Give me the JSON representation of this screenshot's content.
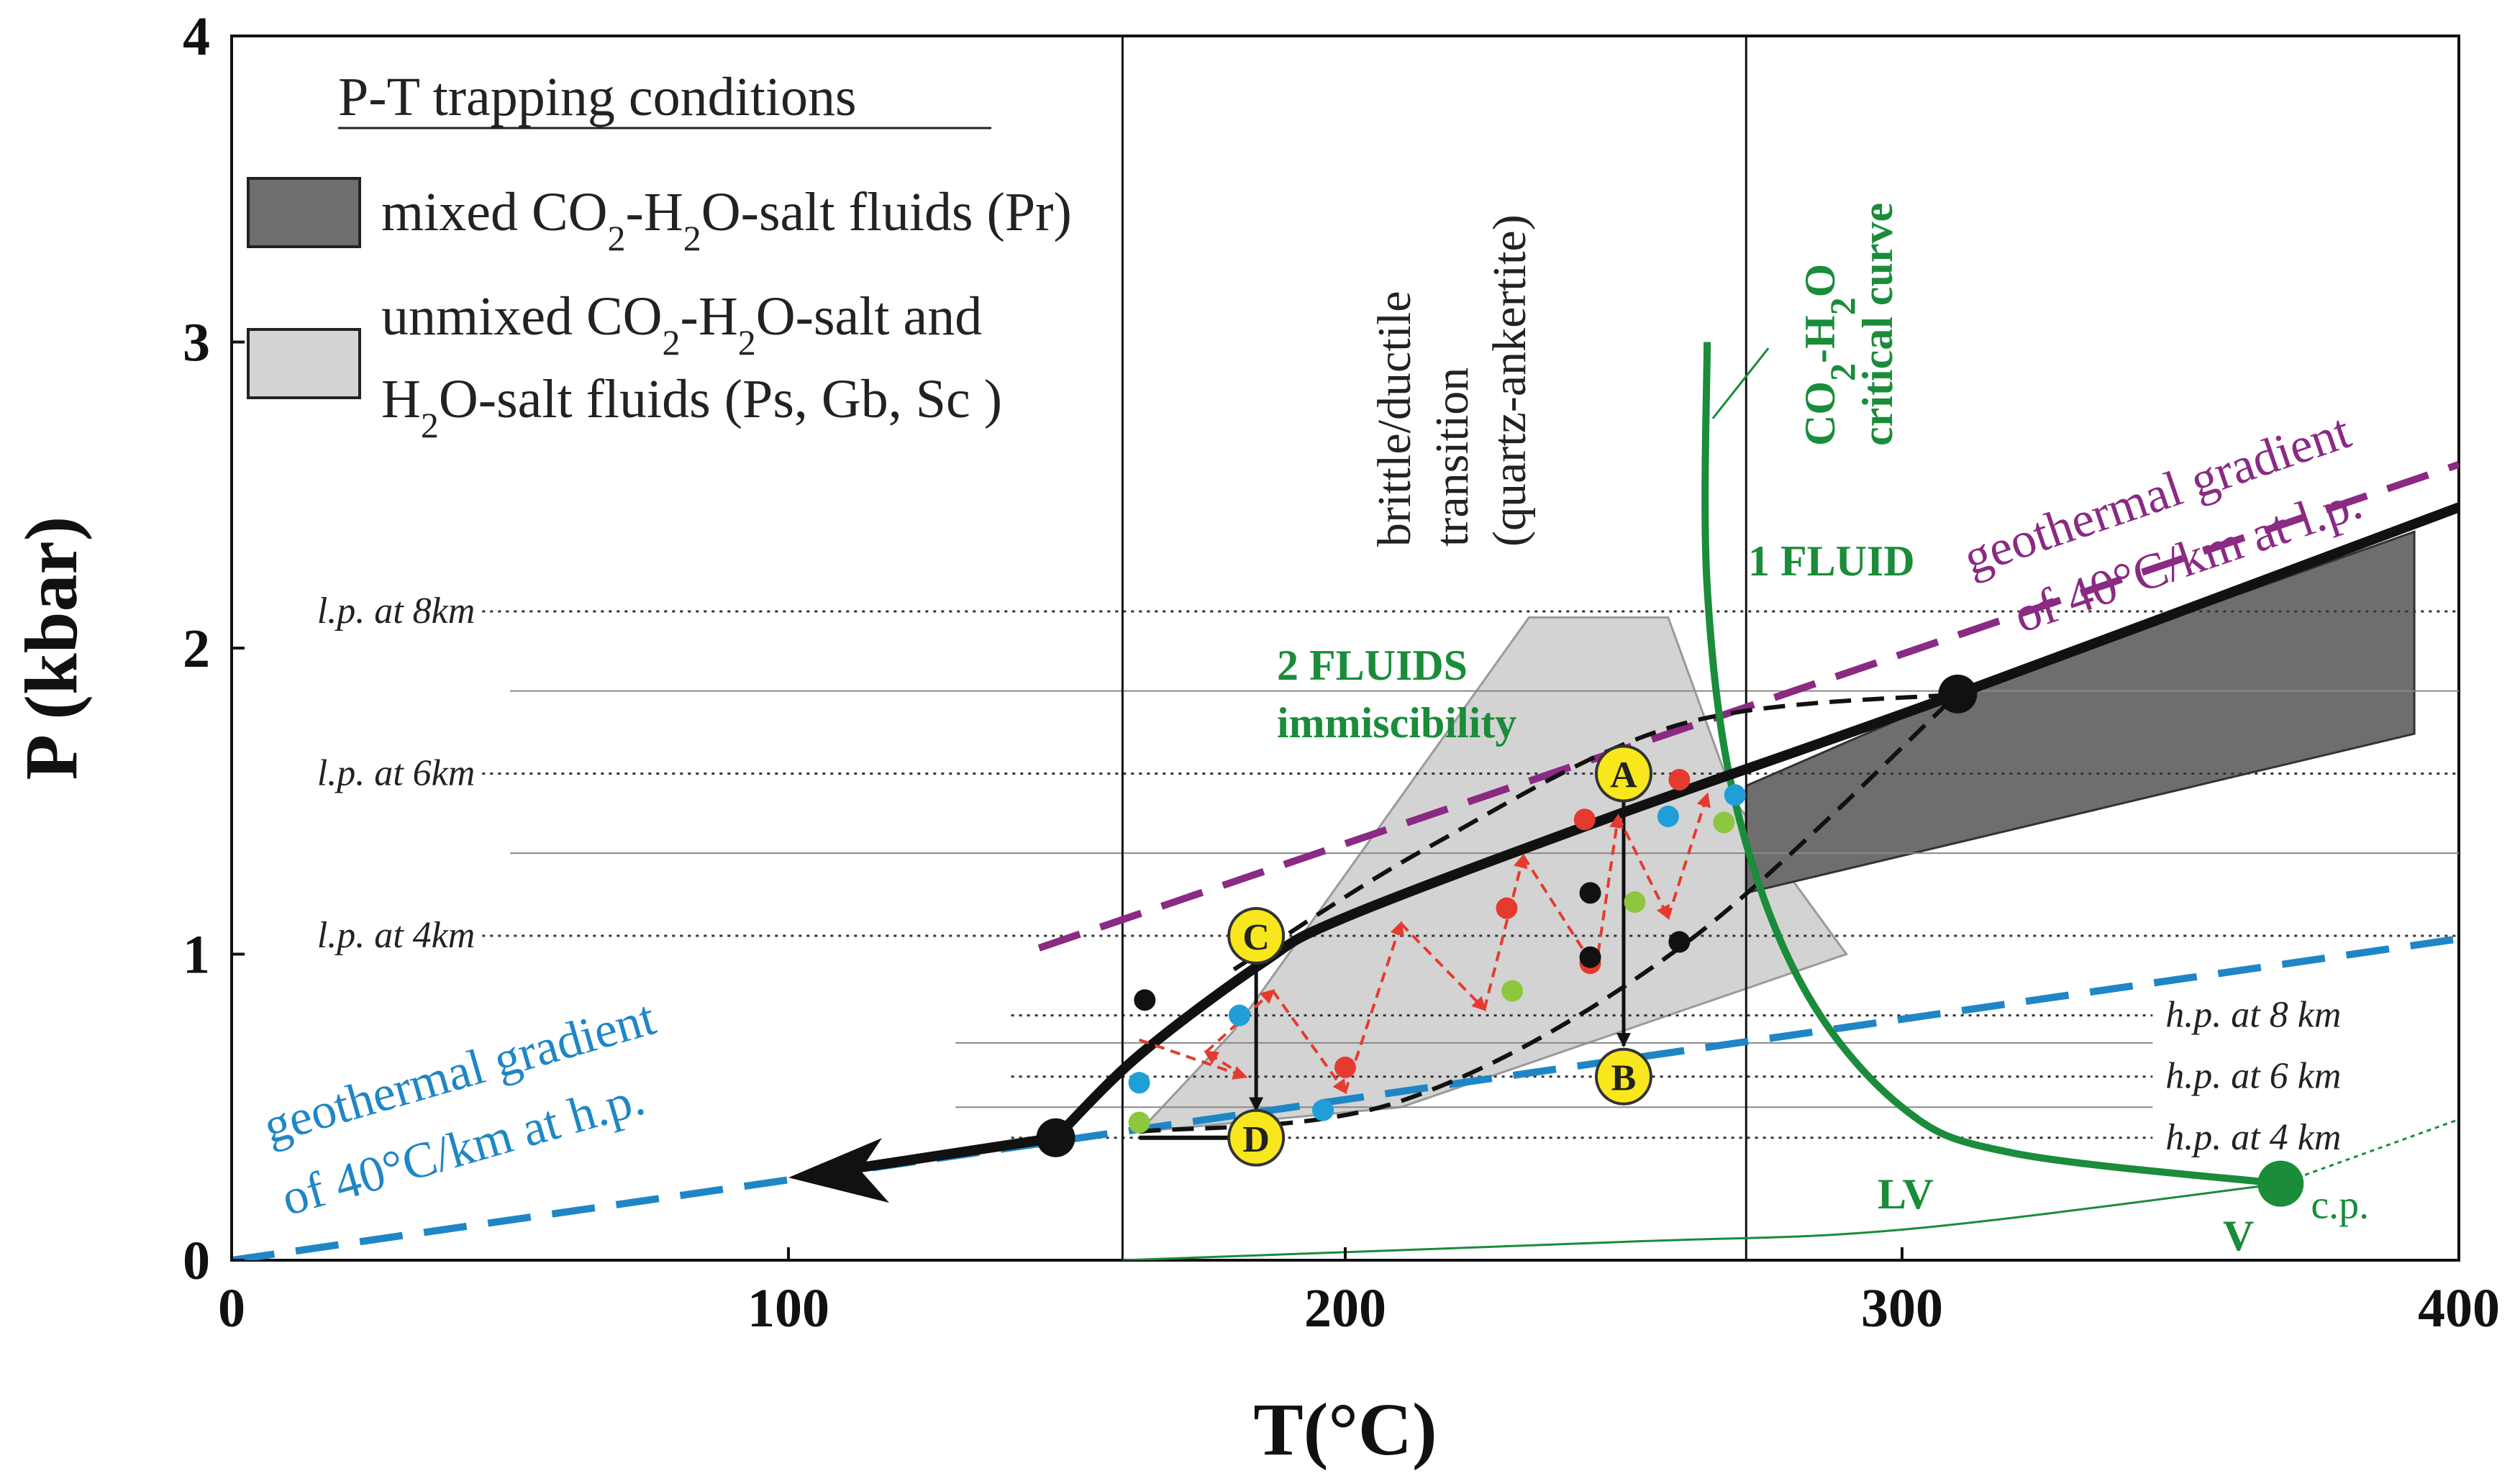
{
  "chart_data": {
    "type": "line",
    "xlabel": "T(°C)",
    "ylabel": "P (kbar)",
    "xlim": [
      0,
      400
    ],
    "ylim": [
      0,
      4
    ],
    "x_ticks": [
      "0",
      "100",
      "200",
      "300",
      "400"
    ],
    "y_ticks": [
      "0",
      "1",
      "2",
      "3",
      "4"
    ],
    "legend": {
      "title": "P-T trapping conditions",
      "entries": [
        {
          "swatch_color": "#6e6e6e",
          "line1": "mixed CO2-H2O-salt fluids (Pr)"
        },
        {
          "swatch_color": "#d3d3d3",
          "line1": "unmixed CO2-H2O-salt and",
          "line2": "H2O-salt fluids (Ps, Gb, Sc )"
        }
      ]
    },
    "vertical_lines": [
      {
        "x": 160
      },
      {
        "x": 272
      }
    ],
    "brittle_ductile_label": [
      "brittle/ductile",
      "transition",
      "(quartz-ankertite)"
    ],
    "critical_curve_label": [
      "CO2-H2O",
      "critical curve"
    ],
    "fluid_labels": {
      "one": "1 FLUID",
      "two_line1": "2 FLUIDS",
      "two_line2": "immiscibility"
    },
    "lithostatic_levels": [
      {
        "label": "l.p. at 8km",
        "y": 2.12
      },
      {
        "label": "l.p. at 6km",
        "y": 1.59
      },
      {
        "label": "l.p. at 4km",
        "y": 1.06
      }
    ],
    "hydrostatic_levels": [
      {
        "label": "h.p. at 8 km",
        "y": 0.8
      },
      {
        "label": "h.p. at 6 km",
        "y": 0.6
      },
      {
        "label": "h.p. at 4 km",
        "y": 0.4
      }
    ],
    "thin_lines_y": [
      1.86,
      1.33,
      0.71,
      0.5
    ],
    "geotherm_lp": {
      "label_line1": "geothermal gradient",
      "label_line2": "of 40°C/km at l.p.",
      "color": "#8a2a82",
      "points": [
        [
          145,
          1.02
        ],
        [
          400,
          2.6
        ]
      ]
    },
    "geotherm_hp": {
      "label_line1": "geothermal gradient",
      "label_line2": "of 40°C/km at h.p.",
      "color": "#1f86c6",
      "points": [
        [
          0,
          0
        ],
        [
          400,
          1.05
        ]
      ]
    },
    "pt_path": [
      [
        148,
        0.4
      ],
      [
        163,
        0.67
      ],
      [
        185,
        0.97
      ],
      [
        200,
        1.12
      ],
      [
        248,
        1.45
      ],
      [
        310,
        1.85
      ],
      [
        400,
        2.46
      ]
    ],
    "arrow_tip": [
      100,
      0.27
    ],
    "mixed_region": [
      [
        272,
        1.55
      ],
      [
        310,
        1.85
      ],
      [
        392,
        2.38
      ],
      [
        392,
        1.72
      ],
      [
        272,
        1.2
      ]
    ],
    "unmixed_region": [
      [
        163,
        0.42
      ],
      [
        180,
        0.75
      ],
      [
        233,
        2.1
      ],
      [
        258,
        2.1
      ],
      [
        270,
        1.5
      ],
      [
        290,
        1.0
      ],
      [
        210,
        0.5
      ]
    ],
    "critical_curve": {
      "color": "#1a8c3a",
      "points": [
        [
          265,
          3.0
        ],
        [
          265,
          2.2
        ],
        [
          270,
          1.5
        ],
        [
          282,
          0.9
        ],
        [
          300,
          0.5
        ],
        [
          320,
          0.35
        ],
        [
          368,
          0.25
        ]
      ]
    },
    "lv_curve": [
      [
        160,
        0
      ],
      [
        250,
        0.06
      ],
      [
        300,
        0.1
      ],
      [
        368,
        0.25
      ]
    ],
    "points": [
      {
        "label": "A",
        "x": 250,
        "y": 1.59
      },
      {
        "label": "B",
        "x": 250,
        "y": 0.6
      },
      {
        "label": "C",
        "x": 184,
        "y": 1.06
      },
      {
        "label": "D",
        "x": 184,
        "y": 0.4
      }
    ],
    "critical_point": {
      "x": 368,
      "y": 0.25,
      "label": "c.p."
    },
    "phase_labels": {
      "lv": "LV",
      "v": "V"
    },
    "red_dots": [
      [
        200,
        0.63
      ],
      [
        229,
        1.15
      ],
      [
        243,
        1.44
      ],
      [
        244,
        0.97
      ],
      [
        260,
        1.57
      ]
    ],
    "blue_dots": [
      [
        163,
        0.58
      ],
      [
        181,
        0.8
      ],
      [
        196,
        0.49
      ],
      [
        258,
        1.45
      ],
      [
        270,
        1.52
      ]
    ],
    "green_dots": [
      [
        163,
        0.45
      ],
      [
        230,
        0.88
      ],
      [
        252,
        1.17
      ],
      [
        268,
        1.43
      ]
    ],
    "black_dots": [
      [
        164,
        0.85
      ],
      [
        244,
        1.2
      ],
      [
        244,
        0.99
      ],
      [
        260,
        1.04
      ]
    ]
  }
}
